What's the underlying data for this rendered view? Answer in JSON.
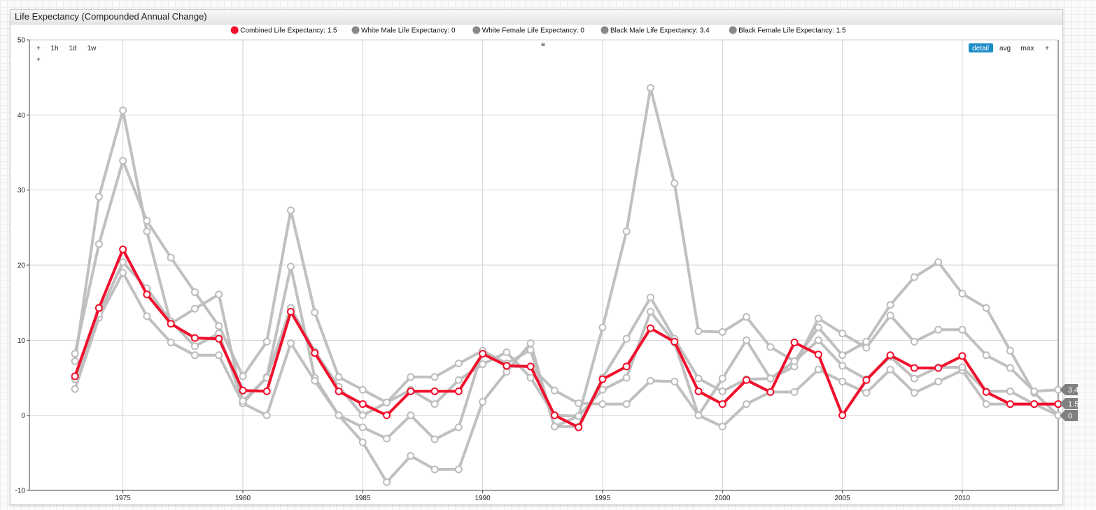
{
  "widget": {
    "title": "Life Expectancy (Compounded Annual Change)"
  },
  "toolbar": {
    "left_buttons": [
      "+",
      "1h",
      "1d",
      "1w"
    ],
    "left_extra": "+",
    "center_icon": "≡",
    "right_buttons": [
      "detail",
      "avg",
      "max",
      "+"
    ],
    "active_button": "detail"
  },
  "colors": {
    "highlight": "#f0102c",
    "muted_series": "#bdbdbd",
    "legend_muted": "#888888",
    "marker_bg": "#808080",
    "active_button_bg": "#1f8ec8"
  },
  "chart_data": {
    "type": "line",
    "xlim": [
      1971.1,
      2014.0
    ],
    "ylim": [
      -10,
      50
    ],
    "yticks": [
      -10,
      0,
      10,
      20,
      30,
      40,
      50
    ],
    "xticks": [
      1975,
      1980,
      1985,
      1990,
      1995,
      2000,
      2005,
      2010
    ],
    "grid": true,
    "legend_position": "top-center",
    "x": [
      1973,
      1974,
      1975,
      1976,
      1977,
      1978,
      1979,
      1980,
      1981,
      1982,
      1983,
      1984,
      1985,
      1986,
      1987,
      1988,
      1989,
      1990,
      1991,
      1992,
      1993,
      1994,
      1995,
      1996,
      1997,
      1998,
      1999,
      2000,
      2001,
      2002,
      2003,
      2004,
      2005,
      2006,
      2007,
      2008,
      2009,
      2010,
      2011,
      2012,
      2013,
      2014
    ],
    "series": [
      {
        "name": "White Male Life Expectancy",
        "legend": "White Male Life Expectancy: 0",
        "highlight": false,
        "values": [
          7.2,
          29.1,
          40.6,
          24.5,
          12.2,
          14.2,
          16.1,
          1.6,
          5.1,
          19.8,
          5.0,
          0.0,
          -3.6,
          -8.9,
          -5.4,
          -7.2,
          -7.2,
          1.8,
          5.8,
          9.6,
          -1.5,
          -0.1,
          11.7,
          24.5,
          43.6,
          30.9,
          11.2,
          11.1,
          13.1,
          9.1,
          7.2,
          11.7,
          8.0,
          9.8,
          14.7,
          18.4,
          20.4,
          16.2,
          14.3,
          8.6,
          3.0,
          0.0
        ]
      },
      {
        "name": "White Female Life Expectancy",
        "legend": "White Female Life Expectancy: 0",
        "highlight": false,
        "values": [
          3.5,
          13.0,
          19.0,
          13.2,
          9.7,
          8.0,
          8.0,
          1.6,
          0.0,
          9.6,
          4.6,
          0.0,
          -1.6,
          -3.1,
          0.0,
          -3.2,
          -1.6,
          8.6,
          6.5,
          6.5,
          3.3,
          1.6,
          1.5,
          1.5,
          4.6,
          4.5,
          0.0,
          -1.5,
          1.5,
          3.1,
          3.1,
          6.1,
          4.5,
          3.0,
          6.1,
          3.0,
          4.5,
          6.0,
          1.5,
          1.5,
          1.5,
          0.0
        ]
      },
      {
        "name": "Black Male Life Expectancy",
        "legend": "Black Male Life Expectancy: 3.4",
        "highlight": false,
        "values": [
          8.2,
          22.8,
          33.9,
          25.9,
          21.0,
          16.4,
          11.9,
          5.2,
          9.8,
          27.3,
          13.7,
          5.1,
          3.4,
          1.7,
          5.1,
          5.1,
          6.9,
          8.6,
          6.9,
          8.7,
          -1.5,
          -1.5,
          5.0,
          10.2,
          15.7,
          10.2,
          4.9,
          3.2,
          4.8,
          4.9,
          6.5,
          12.9,
          10.9,
          9.0,
          13.3,
          9.8,
          11.4,
          11.4,
          8.0,
          6.3,
          3.2,
          3.4
        ]
      },
      {
        "name": "Black Female Life Expectancy",
        "legend": "Black Female Life Expectancy: 1.5",
        "highlight": false,
        "values": [
          4.8,
          13.5,
          20.4,
          16.9,
          12.5,
          9.2,
          10.9,
          1.9,
          5.0,
          14.3,
          8.5,
          3.8,
          0.0,
          1.7,
          3.4,
          1.5,
          4.7,
          6.8,
          8.4,
          5.0,
          0.0,
          -0.1,
          3.4,
          5.0,
          13.8,
          9.7,
          0.0,
          4.9,
          10.0,
          4.9,
          7.2,
          10.0,
          6.6,
          4.8,
          7.8,
          4.9,
          6.4,
          6.4,
          3.2,
          3.2,
          1.5,
          1.5
        ]
      },
      {
        "name": "Combined Life Expectancy",
        "legend": "Combined Life Expectancy: 1.5",
        "highlight": true,
        "values": [
          5.2,
          14.3,
          22.1,
          16.1,
          12.2,
          10.3,
          10.2,
          3.3,
          3.2,
          13.8,
          8.3,
          3.2,
          1.5,
          0.0,
          3.2,
          3.2,
          3.2,
          8.2,
          6.6,
          6.5,
          0.0,
          -1.6,
          4.8,
          6.5,
          11.6,
          9.8,
          3.2,
          1.5,
          4.7,
          3.1,
          9.7,
          8.1,
          0.0,
          4.7,
          8.0,
          6.3,
          6.3,
          7.9,
          3.1,
          1.5,
          1.5,
          1.5
        ]
      }
    ],
    "last_value_markers": [
      "3.4",
      "1.5",
      "0"
    ]
  }
}
